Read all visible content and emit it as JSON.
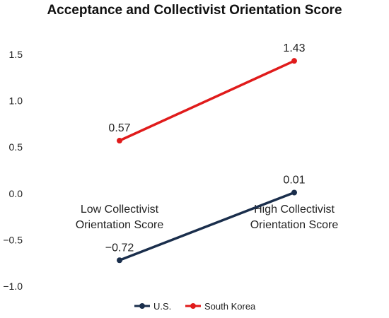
{
  "chart_data": {
    "type": "line",
    "title": "Acceptance and Collectivist Orientation Score",
    "xlabel": "",
    "ylabel": "",
    "categories": [
      [
        "Low Collectivist",
        "Orientation Score"
      ],
      [
        "High Collectivist",
        "Orientation Score"
      ]
    ],
    "yticks": [
      "1.5",
      "1.0",
      "0.5",
      "0.0",
      "−0.5",
      "−1.0"
    ],
    "ytick_values": [
      1.5,
      1.0,
      0.5,
      0.0,
      -0.5,
      -1.0
    ],
    "ylim": [
      -1.0,
      1.5
    ],
    "grid": false,
    "legend_position": "bottom",
    "series": [
      {
        "name": "U.S.",
        "color": "#1a2e4c",
        "values": [
          -0.72,
          0.01
        ],
        "labels": [
          "−0.72",
          "0.01"
        ]
      },
      {
        "name": "South Korea",
        "color": "#e01b1b",
        "values": [
          0.57,
          1.43
        ],
        "labels": [
          "0.57",
          "1.43"
        ]
      }
    ]
  }
}
